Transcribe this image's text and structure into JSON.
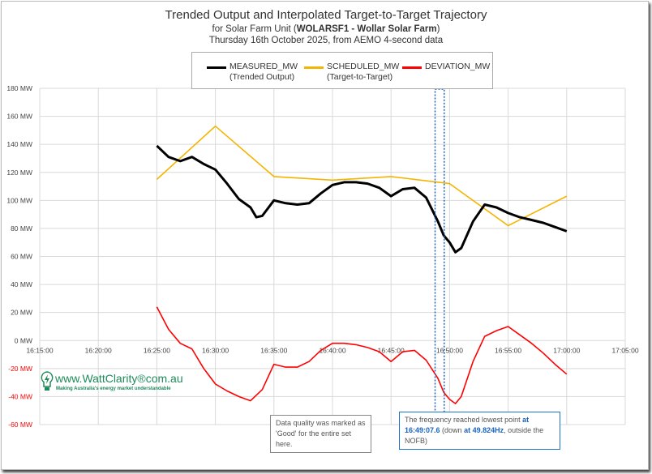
{
  "chart_data": {
    "type": "line",
    "title": "Trended Output and Interpolated Target-to-Target Trajectory",
    "subtitle_prefix": "for Solar Farm Unit (",
    "subtitle_bold": "WOLARSF1 - Wollar Solar Farm",
    "subtitle_suffix": ")",
    "subtitle2": "Thursday 16th October 2025, from AEMO 4-second data",
    "x_unit": "minutes past 16:00",
    "xlim": [
      15,
      65
    ],
    "ylim": [
      -60,
      180
    ],
    "y_ticks": [
      {
        "v": 180,
        "label": "180 MW"
      },
      {
        "v": 160,
        "label": "160 MW"
      },
      {
        "v": 140,
        "label": "140 MW"
      },
      {
        "v": 120,
        "label": "120 MW"
      },
      {
        "v": 100,
        "label": "100 MW"
      },
      {
        "v": 80,
        "label": "80 MW"
      },
      {
        "v": 60,
        "label": "60 MW"
      },
      {
        "v": 40,
        "label": "40 MW"
      },
      {
        "v": 20,
        "label": "20 MW"
      },
      {
        "v": 0,
        "label": "0 MW"
      },
      {
        "v": -20,
        "label": "-20 MW"
      },
      {
        "v": -40,
        "label": "-40 MW"
      },
      {
        "v": -60,
        "label": "-60 MW"
      }
    ],
    "x_ticks": [
      {
        "v": 15,
        "label": "16:15:00"
      },
      {
        "v": 20,
        "label": "16:20:00"
      },
      {
        "v": 25,
        "label": "16:25:00"
      },
      {
        "v": 30,
        "label": "16:30:00"
      },
      {
        "v": 35,
        "label": "16:35:00"
      },
      {
        "v": 40,
        "label": "16:40:00"
      },
      {
        "v": 45,
        "label": "16:45:00"
      },
      {
        "v": 50,
        "label": "16:50:00"
      },
      {
        "v": 55,
        "label": "16:55:00"
      },
      {
        "v": 60,
        "label": "17:00:00"
      },
      {
        "v": 65,
        "label": "17:05:00"
      }
    ],
    "series": [
      {
        "name": "MEASURED_MW",
        "desc": "(Trended Output)",
        "color": "#000000",
        "x": [
          25,
          26,
          27,
          28,
          29,
          30,
          31,
          32,
          33,
          33.5,
          34,
          35,
          36,
          37,
          38,
          39,
          40,
          41,
          42,
          43,
          44,
          45,
          46,
          47,
          48,
          49,
          49.5,
          50,
          50.5,
          51,
          52,
          53,
          54,
          55,
          56,
          57,
          58,
          59,
          60
        ],
        "y": [
          139,
          131,
          128,
          131,
          126,
          122,
          112,
          101,
          95,
          88,
          89,
          100,
          98,
          97,
          98,
          105,
          111,
          113,
          113,
          112,
          109,
          103,
          108,
          109,
          102,
          85,
          75,
          70,
          63,
          66,
          85,
          97,
          95,
          91,
          88,
          86,
          84,
          81,
          78
        ]
      },
      {
        "name": "SCHEDULED_MW",
        "desc": "(Target-to-Target)",
        "color": "#f5b400",
        "x": [
          25,
          30,
          35,
          40,
          45,
          50,
          55,
          60
        ],
        "y": [
          115,
          153,
          117,
          114.5,
          117,
          112,
          82,
          103
        ]
      },
      {
        "name": "DEVIATION_MW",
        "desc": "",
        "color": "#ff0000",
        "x": [
          25,
          26,
          27,
          28,
          29,
          30,
          31,
          32,
          33,
          34,
          35,
          36,
          37,
          38,
          39,
          40,
          41,
          42,
          43,
          44,
          45,
          46,
          47,
          48,
          49,
          49.5,
          50,
          50.5,
          51,
          52,
          53,
          54,
          55,
          56,
          57,
          58,
          59,
          60
        ],
        "y": [
          24,
          8,
          -2,
          -6,
          -20,
          -31,
          -36,
          -40,
          -43,
          -35,
          -17,
          -19,
          -19,
          -15,
          -7,
          -2,
          -2,
          -3,
          -5,
          -8,
          -15,
          -8,
          -7,
          -14,
          -27,
          -37,
          -42,
          -45,
          -40,
          -15,
          3,
          7,
          10,
          4,
          -2,
          -9,
          -17,
          -24
        ]
      }
    ],
    "highlight_window": [
      48.9,
      49.4
    ],
    "annotations": {
      "quality": "Data quality was marked as 'Good' for the entire set here.",
      "freq_a": "The frequency reached lowest point ",
      "freq_b": "at 16:49:07.6",
      "freq_c": " (down ",
      "freq_d": "at 49.824Hz",
      "freq_e": ", outside the NOFB)"
    },
    "logo": {
      "text": "www.WattClarity®com.au",
      "tagline": "Making Australia's energy market understandable"
    }
  }
}
